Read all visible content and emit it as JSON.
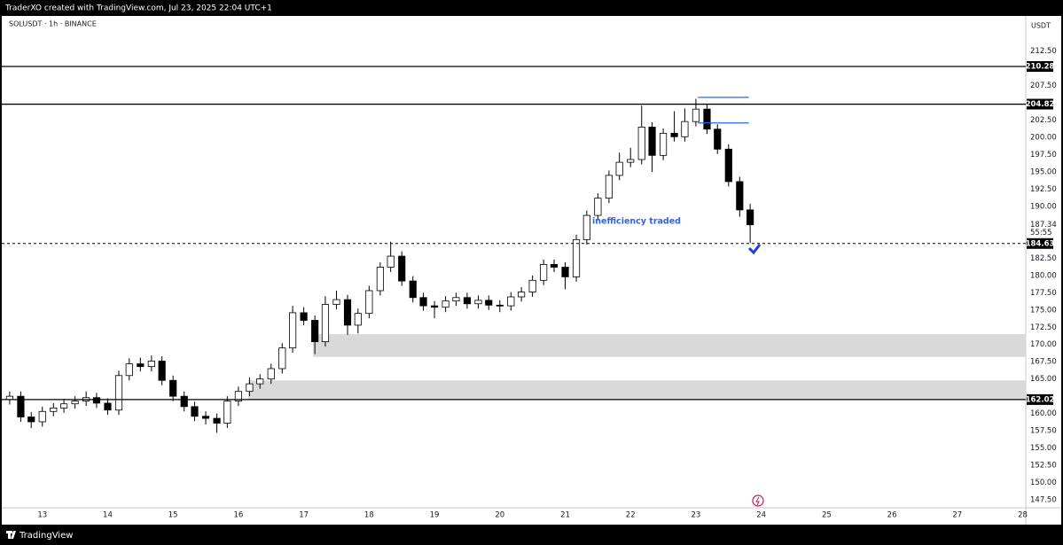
{
  "header": {
    "attribution": "TraderXO created with TradingView.com, Jul 23, 2025 22:04 UTC+1",
    "brand": "TradingView"
  },
  "chart_data": {
    "type": "candlestick",
    "title": "SOLUSDT · 1h · BINANCE",
    "currency": "USDT",
    "x": [
      12.5,
      12.67,
      12.83,
      13,
      13.17,
      13.33,
      13.5,
      13.67,
      13.83,
      14,
      14.17,
      14.33,
      14.5,
      14.67,
      14.83,
      15,
      15.17,
      15.33,
      15.5,
      15.67,
      15.83,
      16,
      16.17,
      16.33,
      16.5,
      16.67,
      16.83,
      17,
      17.17,
      17.33,
      17.5,
      17.67,
      17.83,
      18,
      18.17,
      18.33,
      18.5,
      18.67,
      18.83,
      19,
      19.17,
      19.33,
      19.5,
      19.67,
      19.83,
      20,
      20.17,
      20.33,
      20.5,
      20.67,
      20.83,
      21,
      21.17,
      21.33,
      21.5,
      21.67,
      21.83,
      22,
      22.17,
      22.33,
      22.5,
      22.67,
      22.83,
      23,
      23.17,
      23.33,
      23.5,
      23.67,
      23.83
    ],
    "open": [
      162.0,
      162.5,
      159.5,
      158.8,
      160.3,
      160.8,
      161.4,
      161.8,
      162.3,
      161.5,
      160.5,
      165.5,
      167.2,
      166.8,
      167.6,
      164.8,
      162.5,
      161.0,
      159.6,
      159.3,
      158.6,
      161.8,
      163.2,
      164.3,
      165.0,
      166.5,
      169.5,
      174.6,
      173.5,
      170.4,
      175.8,
      176.5,
      172.8,
      174.5,
      177.8,
      181.2,
      182.8,
      179.2,
      176.8,
      175.6,
      175.4,
      176.3,
      176.8,
      175.9,
      176.4,
      175.7,
      175.6,
      176.9,
      177.6,
      179.3,
      181.6,
      181.2,
      179.8,
      185.2,
      188.7,
      191.2,
      194.5,
      196.4,
      196.8,
      201.5,
      197.4,
      200.6,
      200.1,
      202.3,
      204.1,
      201.2,
      198.3,
      193.6,
      189.5
    ],
    "high": [
      163.2,
      163.2,
      160.2,
      161.0,
      161.5,
      162.1,
      162.5,
      163.2,
      163.0,
      162.2,
      166.2,
      168.0,
      168.1,
      168.4,
      168.3,
      165.5,
      163.2,
      161.7,
      160.3,
      160.0,
      162.5,
      163.9,
      165.2,
      165.7,
      167.2,
      170.2,
      175.6,
      175.4,
      174.2,
      177.0,
      177.8,
      177.2,
      175.2,
      178.5,
      181.9,
      184.9,
      183.5,
      179.9,
      177.5,
      176.3,
      177.0,
      177.5,
      177.5,
      177.1,
      177.1,
      176.4,
      177.6,
      178.3,
      180.0,
      182.3,
      182.3,
      181.9,
      185.9,
      189.4,
      191.9,
      195.2,
      197.8,
      198.5,
      204.6,
      202.2,
      201.3,
      203.8,
      204.2,
      205.6,
      204.8,
      201.9,
      199.0,
      194.3,
      190.4
    ],
    "low": [
      161.3,
      158.8,
      157.9,
      158.1,
      159.6,
      160.1,
      160.7,
      161.1,
      160.8,
      159.8,
      159.8,
      164.8,
      166.1,
      166.1,
      164.1,
      161.8,
      160.3,
      158.9,
      158.4,
      157.2,
      157.9,
      161.1,
      162.5,
      163.6,
      164.3,
      165.8,
      168.8,
      172.8,
      168.6,
      169.7,
      175.1,
      171.4,
      171.6,
      173.8,
      177.1,
      180.5,
      178.5,
      176.1,
      174.9,
      173.8,
      174.7,
      175.6,
      175.2,
      175.2,
      175.0,
      174.7,
      174.9,
      176.2,
      176.9,
      178.6,
      180.5,
      178.0,
      179.1,
      184.5,
      188.0,
      190.5,
      193.8,
      195.7,
      196.1,
      195.0,
      196.7,
      199.4,
      199.4,
      201.6,
      200.5,
      197.6,
      192.9,
      188.5,
      184.7
    ],
    "close": [
      162.5,
      159.5,
      158.8,
      160.3,
      160.8,
      161.4,
      161.8,
      162.3,
      161.5,
      160.5,
      165.5,
      167.2,
      166.8,
      167.6,
      164.8,
      162.5,
      161.0,
      159.6,
      159.3,
      158.6,
      161.8,
      163.2,
      164.3,
      165.0,
      166.5,
      169.5,
      174.6,
      173.5,
      170.4,
      175.8,
      176.5,
      172.8,
      174.5,
      177.8,
      181.2,
      182.8,
      179.2,
      176.8,
      175.6,
      175.4,
      176.3,
      176.8,
      175.9,
      176.4,
      175.7,
      175.6,
      176.9,
      177.6,
      179.3,
      181.6,
      181.2,
      179.8,
      185.2,
      188.7,
      191.2,
      194.5,
      196.4,
      196.8,
      201.5,
      197.4,
      200.6,
      200.1,
      202.3,
      204.1,
      201.2,
      198.3,
      193.6,
      189.5,
      187.34
    ],
    "up_color": "#ffffff",
    "down_color": "#000000",
    "edge_color": "#000000",
    "xlim": [
      12.42,
      28.02
    ],
    "xticks": [
      13,
      14,
      15,
      16,
      17,
      18,
      19,
      20,
      21,
      22,
      23,
      24,
      25,
      26,
      27,
      28
    ],
    "ylim": [
      146.47,
      217.6
    ],
    "yticks": [
      {
        "value": 212.5,
        "label": "212.50"
      },
      {
        "value": 207.5,
        "label": "207.50"
      },
      {
        "value": 202.5,
        "label": "202.50"
      },
      {
        "value": 200,
        "label": "200.00"
      },
      {
        "value": 197.5,
        "label": "197.50"
      },
      {
        "value": 195,
        "label": "195.00"
      },
      {
        "value": 192.5,
        "label": "192.50"
      },
      {
        "value": 190,
        "label": "190.00"
      },
      {
        "value": 182.5,
        "label": "182.50"
      },
      {
        "value": 180,
        "label": "180.00"
      },
      {
        "value": 177.5,
        "label": "177.50"
      },
      {
        "value": 175,
        "label": "175.00"
      },
      {
        "value": 172.5,
        "label": "172.50"
      },
      {
        "value": 170,
        "label": "170.00"
      },
      {
        "value": 167.5,
        "label": "167.50"
      },
      {
        "value": 165,
        "label": "165.00"
      },
      {
        "value": 160,
        "label": "160.00"
      },
      {
        "value": 157.5,
        "label": "157.50"
      },
      {
        "value": 155,
        "label": "155.00"
      },
      {
        "value": 152.5,
        "label": "152.50"
      },
      {
        "value": 150,
        "label": "150.00"
      },
      {
        "value": 147.5,
        "label": "147.50"
      }
    ],
    "levels": [
      {
        "value": 210.28,
        "style": "solid"
      },
      {
        "value": 204.82,
        "style": "solid"
      },
      {
        "value": 184.63,
        "style": "dashed"
      },
      {
        "value": 162.02,
        "style": "solid"
      }
    ],
    "zones": [
      {
        "from": 168.2,
        "to": 171.5,
        "x_start": 17.14,
        "color": "#d9d9d9"
      },
      {
        "from": 162.0,
        "to": 164.8,
        "x_start": 16.15,
        "color": "#d9d9d9"
      }
    ],
    "rays": [
      {
        "value": 205.8,
        "x": [
          23.03,
          23.81
        ]
      },
      {
        "value": 202.1,
        "x": [
          23.03,
          23.81
        ]
      }
    ],
    "ray_color": "#2962ff",
    "annotation": "inefficiency traded",
    "annotation_color": "#2962ff",
    "countdown": "55:55"
  }
}
